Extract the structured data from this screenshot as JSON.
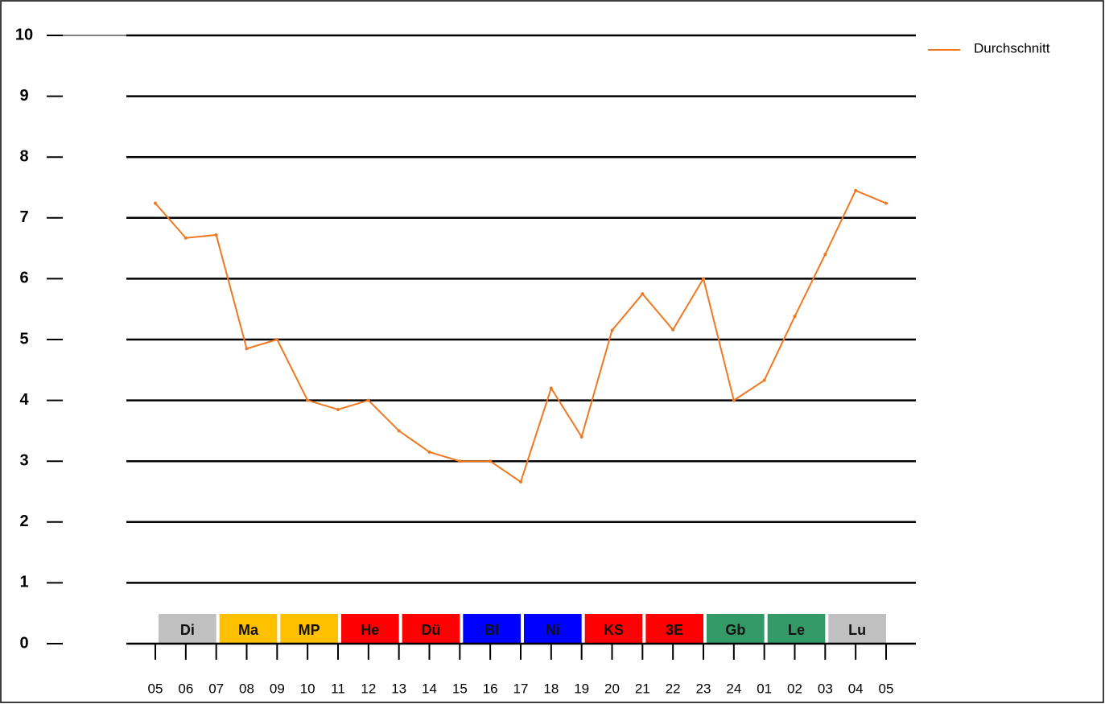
{
  "chart_data": {
    "type": "line",
    "categories": [
      "05",
      "06",
      "07",
      "08",
      "09",
      "10",
      "11",
      "12",
      "13",
      "14",
      "15",
      "16",
      "17",
      "18",
      "19",
      "20",
      "21",
      "22",
      "23",
      "24",
      "01",
      "02",
      "03",
      "04",
      "05"
    ],
    "series": [
      {
        "name": "Durchschnitt",
        "color": "#f07820",
        "values": [
          7.24,
          6.67,
          6.72,
          4.85,
          5.0,
          4.0,
          3.85,
          4.0,
          3.5,
          3.15,
          3.0,
          3.0,
          2.66,
          4.2,
          3.4,
          5.15,
          5.75,
          5.16,
          6.0,
          4.0,
          4.33,
          5.38,
          6.4,
          7.45,
          7.24
        ]
      }
    ],
    "ylim": [
      0,
      10
    ],
    "yticks": [
      0,
      1,
      2,
      3,
      4,
      5,
      6,
      7,
      8,
      9,
      10
    ],
    "grid": true,
    "bands": [
      {
        "label": "Di",
        "color": "#c0c0c0"
      },
      {
        "label": "Ma",
        "color": "#ffc000"
      },
      {
        "label": "MP",
        "color": "#ffc000"
      },
      {
        "label": "He",
        "color": "#ff0000"
      },
      {
        "label": "Dü",
        "color": "#ff0000"
      },
      {
        "label": "Bl",
        "color": "#0000ff"
      },
      {
        "label": "Ni",
        "color": "#0000ff"
      },
      {
        "label": "KS",
        "color": "#ff0000"
      },
      {
        "label": "3E",
        "color": "#ff0000"
      },
      {
        "label": "Gb",
        "color": "#339966"
      },
      {
        "label": "Le",
        "color": "#339966"
      },
      {
        "label": "Lu",
        "color": "#c0c0c0"
      }
    ]
  }
}
